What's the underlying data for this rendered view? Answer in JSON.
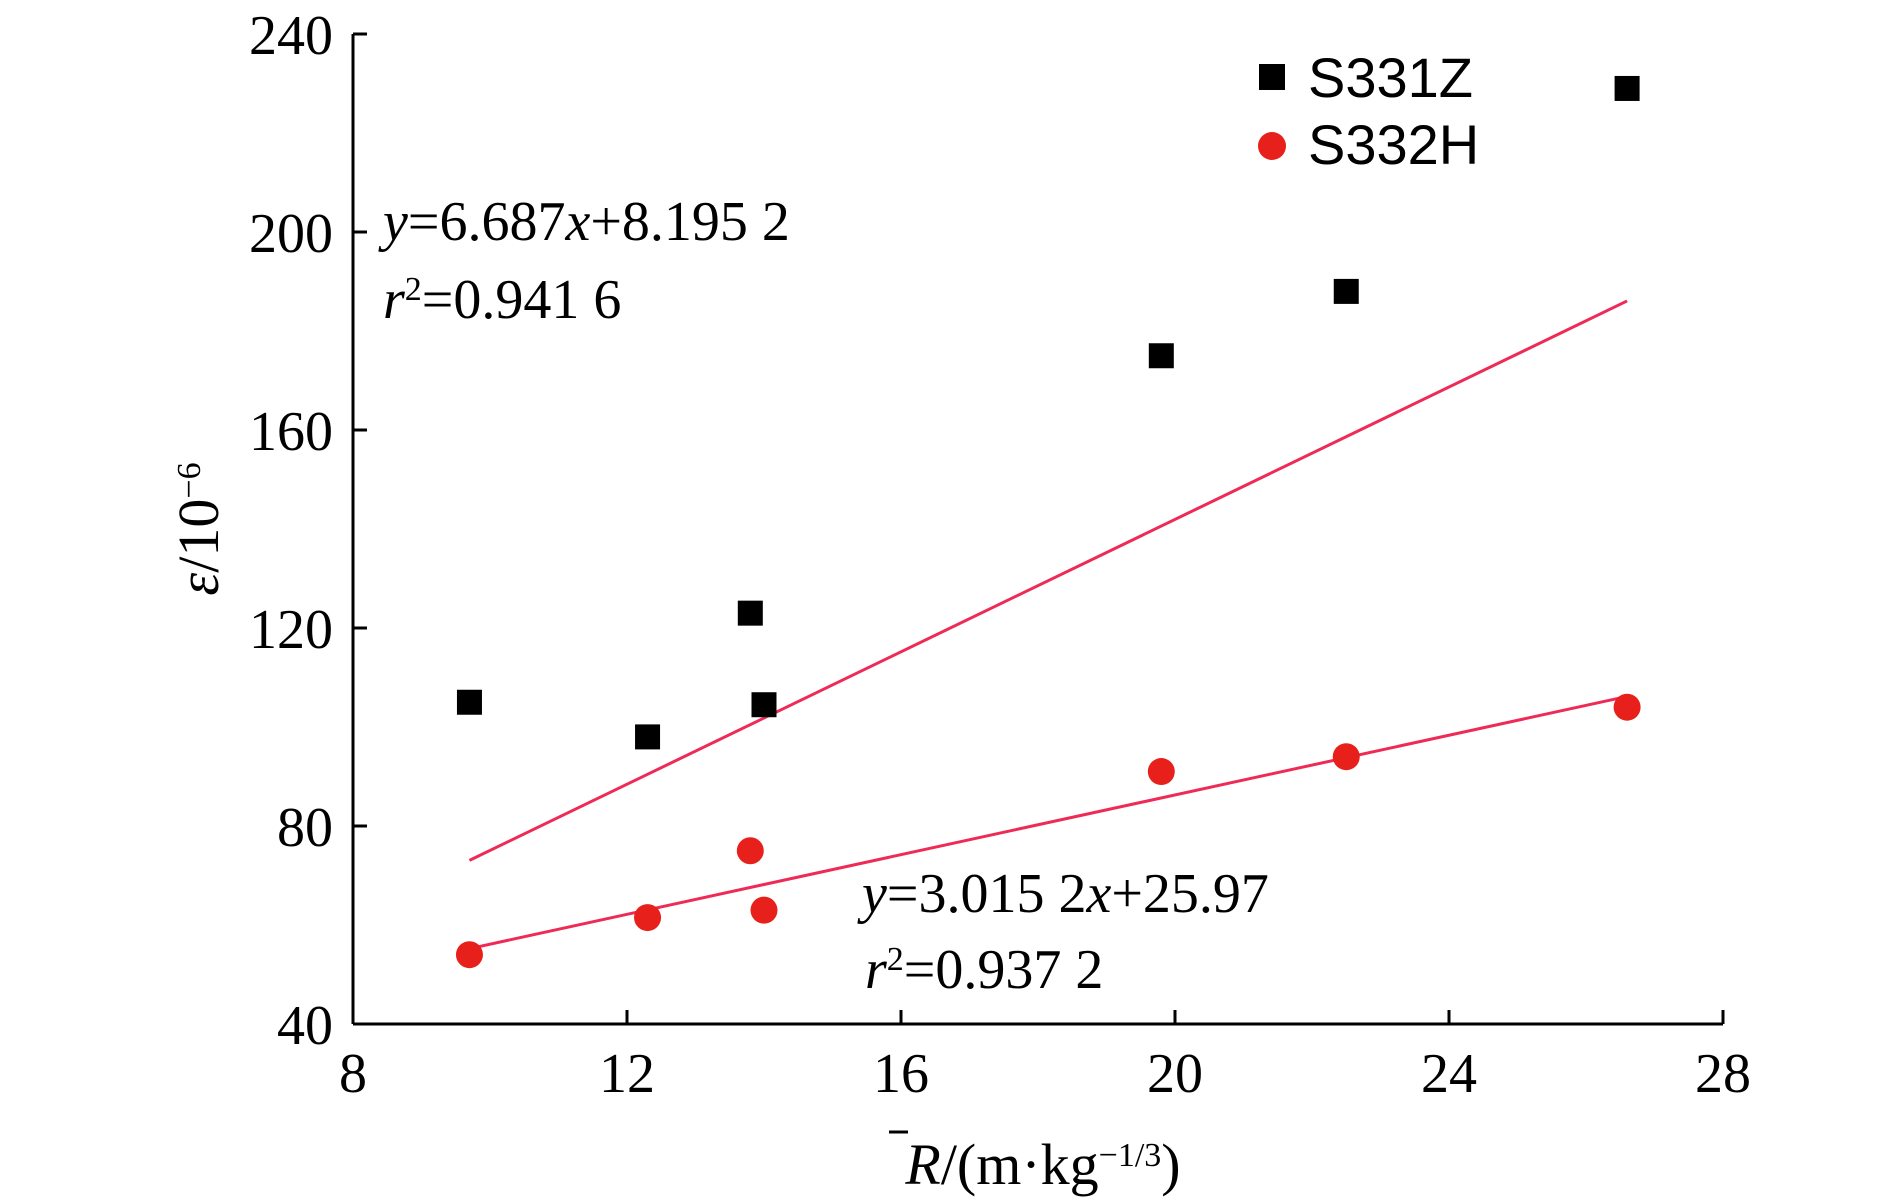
{
  "chart_data": {
    "type": "scatter",
    "xlabel": {
      "var": "R",
      "unit_prefix": "/(m·kg",
      "exp": "−1/3",
      "unit_suffix": ")"
    },
    "ylabel": {
      "var": "ε",
      "unit_prefix": "/10",
      "exp": "−6"
    },
    "xlim": [
      8,
      28
    ],
    "ylim": [
      40,
      240
    ],
    "xticks": [
      8,
      12,
      16,
      20,
      24,
      28
    ],
    "yticks": [
      40,
      80,
      120,
      160,
      200,
      240
    ],
    "legend_position": "top-right",
    "grid": false,
    "series": [
      {
        "name": "S331Z",
        "marker": "square",
        "color": "#000000",
        "x": [
          9.7,
          12.3,
          13.8,
          14.0,
          19.8,
          22.5,
          26.6
        ],
        "y": [
          105,
          98,
          123,
          104.5,
          175,
          188,
          229
        ],
        "fit": {
          "slope": 6.687,
          "intercept": 8.1952,
          "x_range": [
            9.7,
            26.6
          ],
          "color": "#ee2a56"
        },
        "equation": {
          "y_prefix": "y",
          "eq_text": "=6.687",
          "x_var": "x",
          "eq_tail": "+8.195 2",
          "r_var": "r",
          "r_exp": "2",
          "r_value": "=0.941 6"
        }
      },
      {
        "name": "S332H",
        "marker": "circle",
        "color": "#e8201c",
        "x": [
          9.7,
          12.3,
          13.8,
          14.0,
          19.8,
          22.5,
          26.6
        ],
        "y": [
          54,
          61.5,
          75,
          63,
          91,
          94,
          104
        ],
        "fit": {
          "slope": 3.0152,
          "intercept": 25.97,
          "x_range": [
            9.7,
            26.6
          ],
          "color": "#ee2a56"
        },
        "equation": {
          "y_prefix": "y",
          "eq_text": "=3.015 2",
          "x_var": "x",
          "eq_tail": "+25.97",
          "r_var": "r",
          "r_exp": "2",
          "r_value": "=0.937 2"
        }
      }
    ]
  }
}
